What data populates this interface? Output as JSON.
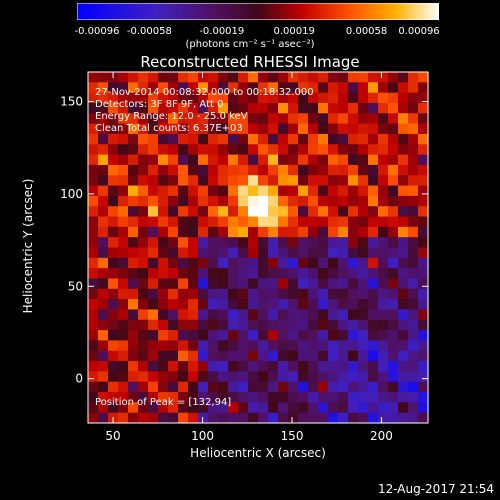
{
  "colorbar": {
    "ticks": [
      "-0.00096",
      "-0.00058",
      "-0.00019",
      "0.00019",
      "0.00058",
      "0.00096"
    ],
    "unit_label": "(photons cm⁻² s⁻¹ asec⁻²)",
    "range": [
      -0.00096,
      0.00096
    ]
  },
  "title": "Reconstructed RHESSI Image",
  "info_lines": [
    "27-Nov-2014 00:08:32.000 to 00:18:32.000",
    "Detectors: 3F 8F 9F, Att 0",
    "Energy Range: 12.0 - 25.0 keV",
    "Clean    Total counts: 6.37E+03"
  ],
  "peak_label": "Position of Peak = [132,94]",
  "footer": "12-Aug-2017 21:54",
  "chart_data": {
    "type": "heatmap",
    "title": "Reconstructed RHESSI Image",
    "xlabel": "Heliocentric X (arcsec)",
    "ylabel": "Heliocentric Y (arcsec)",
    "xlim": [
      36,
      226
    ],
    "ylim": [
      -24,
      166
    ],
    "xticks": [
      50,
      100,
      150,
      200
    ],
    "yticks": [
      0,
      50,
      100,
      150
    ],
    "x_tick_labels": [
      "50",
      "100",
      "150",
      "200"
    ],
    "y_tick_labels": [
      "0",
      "50",
      "100",
      "150"
    ],
    "peak": [
      132,
      94
    ],
    "colormap": "blue-purple-red-yellow-white",
    "colors": [
      "#0000ff",
      "#5a0aa0",
      "#3a0a3a",
      "#a00000",
      "#ff4000",
      "#ffa000",
      "#ffff60",
      "#ffffff"
    ]
  }
}
